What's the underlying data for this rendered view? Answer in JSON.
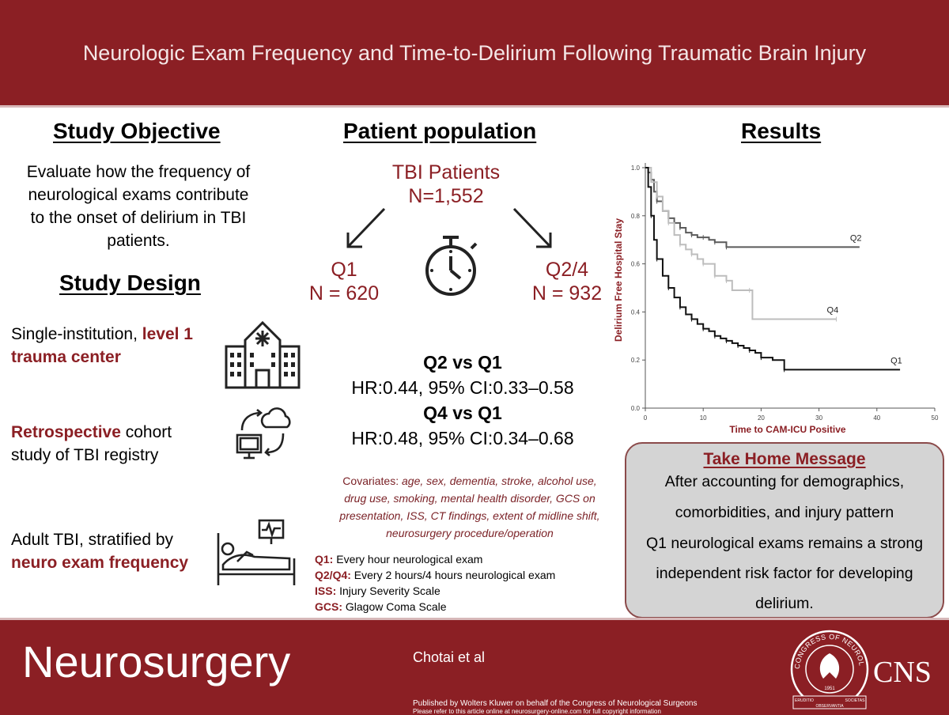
{
  "header": {
    "title": "Neurologic Exam Frequency and Time-to-Delirium Following Traumatic Brain Injury"
  },
  "objective": {
    "heading": "Study Objective",
    "lines": [
      "Evaluate how the frequency of",
      "neurological exams contribute",
      "to the onset of delirium in TBI",
      "patients."
    ]
  },
  "design": {
    "heading": "Study Design",
    "item1": {
      "pre": "Single-institution, ",
      "hl1": "level 1",
      "hl2": "trauma center"
    },
    "item2": {
      "hl": "Retrospective",
      "post1": " cohort",
      "post2": "study of TBI registry"
    },
    "item3": {
      "pre": "Adult TBI, stratified by",
      "hl": "neuro exam frequency"
    }
  },
  "population": {
    "heading": "Patient population",
    "total_label": "TBI Patients",
    "total_n": "N=1,552",
    "q1_label": "Q1",
    "q1_n": "N = 620",
    "q24_label": "Q2/4",
    "q24_n": "N = 932"
  },
  "hazards": {
    "cmp1": "Q2 vs Q1",
    "hr1": "HR:0.44, 95% CI:0.33–0.58",
    "cmp2": "Q4 vs Q1",
    "hr2": "HR:0.48, 95% CI:0.34–0.68"
  },
  "covariates": {
    "label": "Covariates: ",
    "l1": "age, sex, dementia, stroke, alcohol use,",
    "l2": "drug use, smoking, mental health disorder, GCS on",
    "l3": "presentation, ISS, CT findings,  extent of midline shift,",
    "l4": "neurosurgery procedure/operation"
  },
  "definitions": [
    {
      "term": "Q1:",
      "text": " Every hour neurological exam"
    },
    {
      "term": "Q2/Q4:",
      "text": " Every 2 hours/4 hours neurological exam"
    },
    {
      "term": "ISS:",
      "text": " Injury Severity Scale"
    },
    {
      "term": "GCS:",
      "text": " Glagow Coma Scale"
    }
  ],
  "results": {
    "heading": "Results"
  },
  "chart_data": {
    "type": "line",
    "title": "",
    "xlabel": "Time to CAM-ICU Positive",
    "ylabel": "Delirium Free Hospital Stay",
    "xlim": [
      0,
      50
    ],
    "ylim": [
      0,
      1
    ],
    "xticks": [
      "0",
      "10",
      "20",
      "30",
      "40",
      "50"
    ],
    "yticks": [
      "0.0",
      "0.2",
      "0.4",
      "0.6",
      "0.8",
      "1.0"
    ],
    "series": [
      {
        "name": "Q2",
        "color": "#5a5a5a",
        "points": [
          [
            0,
            1.0
          ],
          [
            0.5,
            0.98
          ],
          [
            1,
            0.95
          ],
          [
            1.5,
            0.9
          ],
          [
            2,
            0.86
          ],
          [
            3,
            0.82
          ],
          [
            4,
            0.79
          ],
          [
            5,
            0.77
          ],
          [
            6,
            0.75
          ],
          [
            7,
            0.73
          ],
          [
            8,
            0.72
          ],
          [
            9,
            0.71
          ],
          [
            10,
            0.71
          ],
          [
            11,
            0.7
          ],
          [
            12,
            0.69
          ],
          [
            13,
            0.69
          ],
          [
            14,
            0.67
          ],
          [
            37,
            0.67
          ]
        ]
      },
      {
        "name": "Q4",
        "color": "#bdbdbd",
        "points": [
          [
            0,
            1.0
          ],
          [
            1,
            0.94
          ],
          [
            2,
            0.88
          ],
          [
            3,
            0.82
          ],
          [
            4,
            0.77
          ],
          [
            5,
            0.72
          ],
          [
            6,
            0.68
          ],
          [
            7,
            0.66
          ],
          [
            8,
            0.64
          ],
          [
            9,
            0.62
          ],
          [
            10,
            0.6
          ],
          [
            11,
            0.6
          ],
          [
            12,
            0.55
          ],
          [
            13,
            0.55
          ],
          [
            14,
            0.53
          ],
          [
            15,
            0.49
          ],
          [
            18,
            0.49
          ],
          [
            18.5,
            0.37
          ],
          [
            33,
            0.37
          ]
        ]
      },
      {
        "name": "Q1",
        "color": "#111111",
        "points": [
          [
            0,
            1.0
          ],
          [
            0.5,
            0.92
          ],
          [
            1,
            0.8
          ],
          [
            1.5,
            0.7
          ],
          [
            2,
            0.62
          ],
          [
            3,
            0.55
          ],
          [
            4,
            0.5
          ],
          [
            5,
            0.46
          ],
          [
            6,
            0.42
          ],
          [
            7,
            0.39
          ],
          [
            8,
            0.37
          ],
          [
            9,
            0.35
          ],
          [
            10,
            0.33
          ],
          [
            11,
            0.32
          ],
          [
            12,
            0.3
          ],
          [
            13,
            0.29
          ],
          [
            14,
            0.28
          ],
          [
            15,
            0.27
          ],
          [
            16,
            0.26
          ],
          [
            17,
            0.25
          ],
          [
            18,
            0.24
          ],
          [
            19,
            0.23
          ],
          [
            20,
            0.21
          ],
          [
            22,
            0.2
          ],
          [
            24,
            0.16
          ],
          [
            44,
            0.16
          ]
        ]
      }
    ]
  },
  "take_home": {
    "title": "Take Home Message",
    "lines": [
      "After accounting for demographics,",
      "comorbidities, and injury pattern",
      "Q1 neurological exams remains a strong",
      "independent risk factor for developing",
      "delirium."
    ]
  },
  "footer": {
    "journal": "Neurosurgery",
    "authors": "Chotai et al",
    "published": "Published by Wolters Kluwer on behalf of the Congress of Neurological Surgeons",
    "refer": "Please refer to this article online at neurosurgery-online.com for full copyright information",
    "cns": "CNS",
    "seal_text": "CONGRESS OF NEUROLOGICAL SURGEONS",
    "seal_year": "1951",
    "seal_motto_left": "ERUDITIO",
    "seal_motto_mid": "OBSERVANTIA",
    "seal_motto_right": "SOCIETAS"
  },
  "colors": {
    "brand": "#8b1f24",
    "panel": "#d4d4d4"
  },
  "icons": [
    "arrow-left-down-icon",
    "arrow-right-down-icon",
    "stopwatch-icon",
    "hospital-icon",
    "computer-cloud-icon",
    "patient-bed-icon"
  ]
}
